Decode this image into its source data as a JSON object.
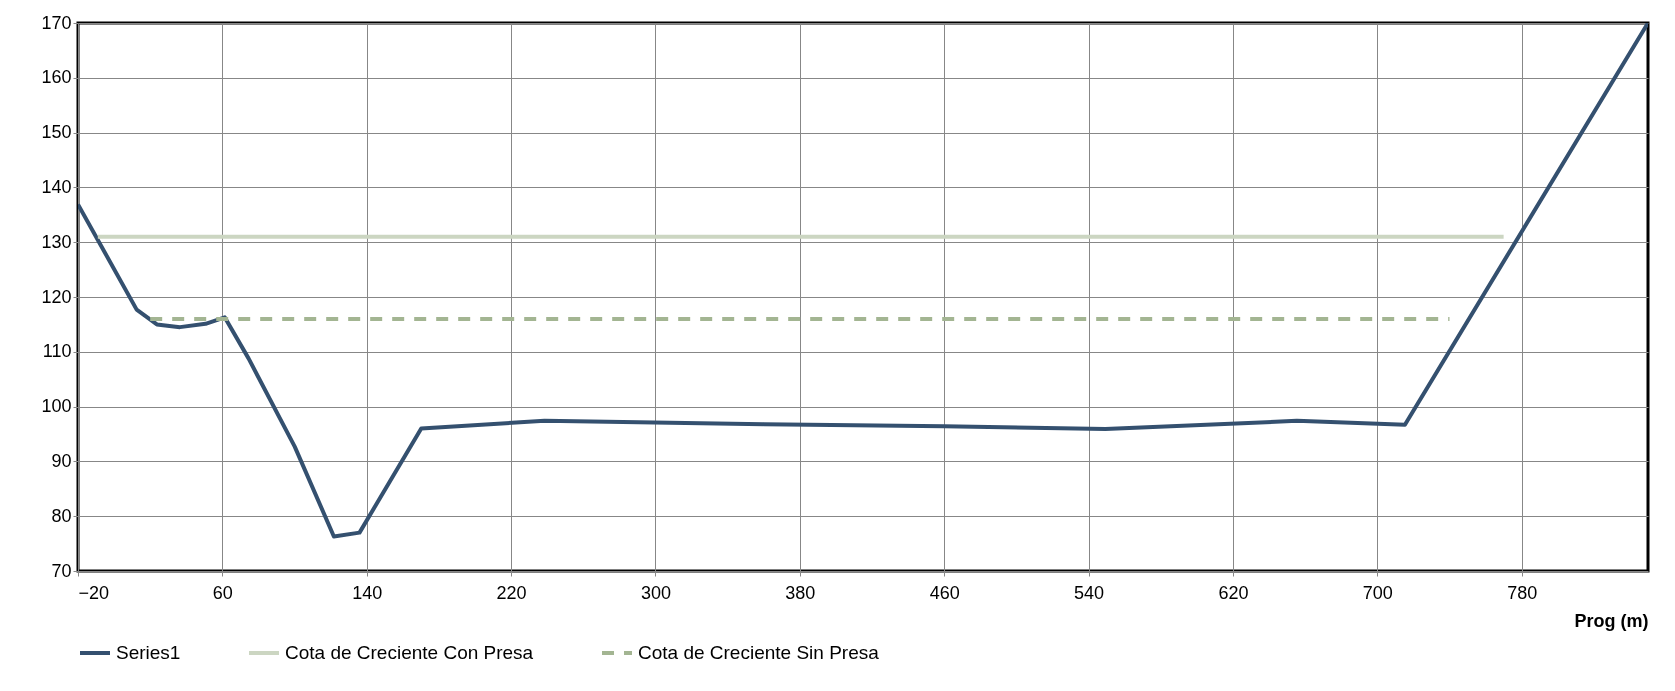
{
  "chart_data": {
    "type": "line",
    "xlabel": "Prog (m)",
    "xlim": [
      -20,
      850
    ],
    "xticks": [
      -20,
      60,
      140,
      220,
      300,
      380,
      460,
      540,
      620,
      700,
      780
    ],
    "ylim": [
      70,
      170
    ],
    "yticks": [
      70,
      80,
      90,
      100,
      110,
      120,
      130,
      140,
      150,
      160,
      170
    ],
    "grid": true,
    "legend": "bottom",
    "marker": "none",
    "series": [
      {
        "name": "Series1",
        "color": "#34506f",
        "line_style": "solid",
        "x": [
          -20,
          12.5,
          23.7,
          36.5,
          50.7,
          61.3,
          74.5,
          100.1,
          121.8,
          136,
          170.2,
          238.5,
          360,
          460,
          549.3,
          655.4,
          715.3,
          850
        ],
        "values": [
          136.9,
          117.7,
          115,
          114.5,
          115.1,
          116.3,
          108.8,
          92.7,
          76.3,
          77,
          96,
          97.4,
          96.8,
          96.4,
          95.9,
          97.4,
          96.7,
          170
        ]
      },
      {
        "name": "Cota de Creciente Con Presa",
        "color": "#ccd6c2",
        "line_style": "solid",
        "x": [
          -9,
          770
        ],
        "values": [
          131,
          131
        ]
      },
      {
        "name": "Cota de Creciente Sin Presa",
        "color": "#a3b592",
        "line_style": "dashed",
        "x": [
          20,
          740
        ],
        "values": [
          116,
          116
        ]
      }
    ]
  }
}
